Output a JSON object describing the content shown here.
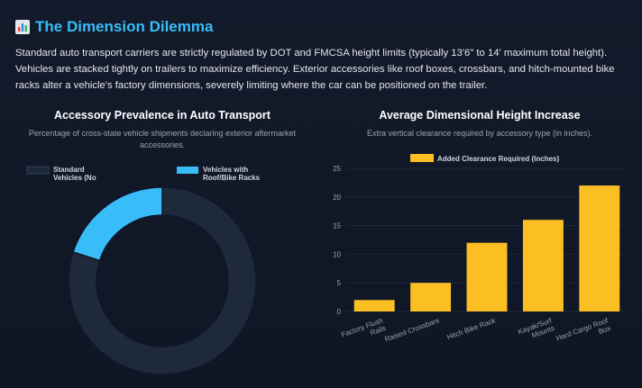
{
  "header": {
    "icon": "bar-chart-icon",
    "title": "The Dimension Dilemma"
  },
  "intro": "Standard auto transport carriers are strictly regulated by DOT and FMCSA height limits (typically 13'6\" to 14' maximum total height). Vehicles are stacked tightly on trailers to maximize efficiency. Exterior accessories like roof boxes, crossbars, and hitch-mounted bike racks alter a vehicle's factory dimensions, severely limiting where the car can be positioned on the trailer.",
  "left_panel": {
    "title": "Accessory Prevalence in Auto Transport",
    "subtitle": "Percentage of cross-state vehicle shipments declaring exterior aftermarket accessories."
  },
  "right_panel": {
    "title": "Average Dimensional Height Increase",
    "subtitle": "Extra vertical clearance required by accessory type (in inches)."
  },
  "colors": {
    "accent": "#38bdf8",
    "bar": "#fbbf24",
    "ring": "#1e293b",
    "background": "#111827"
  },
  "chart_data": [
    {
      "type": "pie",
      "variant": "doughnut",
      "labels": [
        "Standard Vehicles (No",
        "Vehicles with Roof/Bike Racks"
      ],
      "values": [
        80,
        20
      ],
      "colors": [
        "#1e293b",
        "#38bdf8"
      ],
      "legend": "top"
    },
    {
      "type": "bar",
      "categories": [
        [
          "Factory Flush",
          "Rails"
        ],
        [
          "Raised Crossbars"
        ],
        [
          "Hitch Bike Rack"
        ],
        [
          "Kayak/Surf",
          "Mounts"
        ],
        [
          "Hard Cargo Roof",
          "Box"
        ]
      ],
      "series": [
        {
          "name": "Added Clearance Required (Inches)",
          "values": [
            2,
            5,
            12,
            16,
            22
          ]
        }
      ],
      "ylim": [
        0,
        25
      ],
      "yticks": [
        0,
        5,
        10,
        15,
        20,
        25
      ],
      "grid": true,
      "legend": "top"
    }
  ]
}
